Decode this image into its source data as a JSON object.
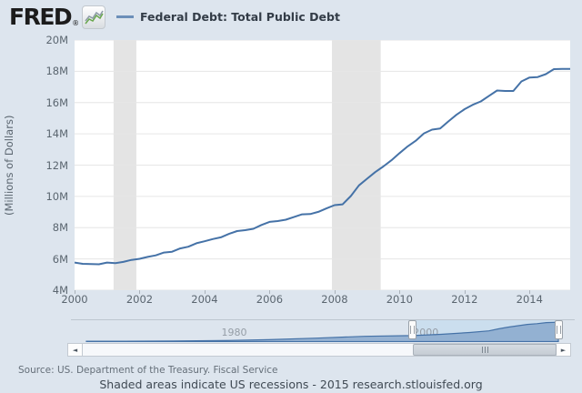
{
  "header": {
    "logo_text": "FRED",
    "logo_reg": "®",
    "legend_label": "Federal Debt: Total Public Debt"
  },
  "colors": {
    "background": "#dde5ee",
    "plot_background": "#ffffff",
    "line": "#4572a7",
    "gridline": "#e6e6e6",
    "recession_band": "#e4e4e4",
    "navigator_fill": "#8aa9cc",
    "navigator_selection": "#cbdeee",
    "axis_text": "#5b6670"
  },
  "footer": {
    "source": "Source: US. Department of the Treasury. Fiscal Service",
    "note": "Shaded areas indicate US recessions - 2015 research.stlouisfed.org"
  },
  "chart_data": {
    "type": "line",
    "title": "Federal Debt: Total Public Debt",
    "xlabel": "",
    "ylabel": "(Millions of Dollars)",
    "unit_note": "axis unit M = million millions of US dollars",
    "ylim": [
      4,
      20
    ],
    "xlim": [
      2000,
      2015.25
    ],
    "grid": "horizontal",
    "legend_position": "top",
    "y_ticks": [
      "20M",
      "18M",
      "16M",
      "14M",
      "12M",
      "10M",
      "8M",
      "6M",
      "4M"
    ],
    "x_ticks": [
      "2000",
      "2002",
      "2004",
      "2006",
      "2008",
      "2010",
      "2012",
      "2014"
    ],
    "x_start": 2000.0,
    "x_step_years": 0.25,
    "values": [
      5.77,
      5.69,
      5.67,
      5.66,
      5.77,
      5.73,
      5.81,
      5.94,
      6.01,
      6.13,
      6.23,
      6.41,
      6.46,
      6.67,
      6.78,
      7.0,
      7.13,
      7.27,
      7.38,
      7.6,
      7.78,
      7.84,
      7.93,
      8.17,
      8.37,
      8.42,
      8.51,
      8.68,
      8.85,
      8.87,
      9.01,
      9.23,
      9.44,
      9.49,
      10.02,
      10.7,
      11.13,
      11.55,
      11.91,
      12.31,
      12.77,
      13.2,
      13.56,
      14.03,
      14.27,
      14.34,
      14.79,
      15.22,
      15.58,
      15.86,
      16.07,
      16.43,
      16.77,
      16.74,
      16.74,
      17.35,
      17.6,
      17.63,
      17.82,
      18.14,
      18.15,
      18.15
    ],
    "recessions": [
      [
        2001.2,
        2001.9
      ],
      [
        2007.92,
        2009.42
      ]
    ],
    "navigator": {
      "range_years": [
        1966,
        2015.25
      ],
      "selection_years": [
        2000,
        2015.25
      ],
      "axis_labels": [
        {
          "text": "1980",
          "year": 1980
        },
        {
          "text": "2000",
          "year": 2000
        }
      ],
      "years": [
        1966,
        1970,
        1975,
        1980,
        1985,
        1990,
        1995,
        2000,
        2003,
        2006,
        2008,
        2009,
        2010,
        2011,
        2012,
        2013,
        2014,
        2015.25
      ],
      "values": [
        0.32,
        0.37,
        0.53,
        0.91,
        1.82,
        3.21,
        4.97,
        5.66,
        6.78,
        8.51,
        10.02,
        11.91,
        13.56,
        14.79,
        16.07,
        16.74,
        17.82,
        18.15
      ]
    }
  }
}
